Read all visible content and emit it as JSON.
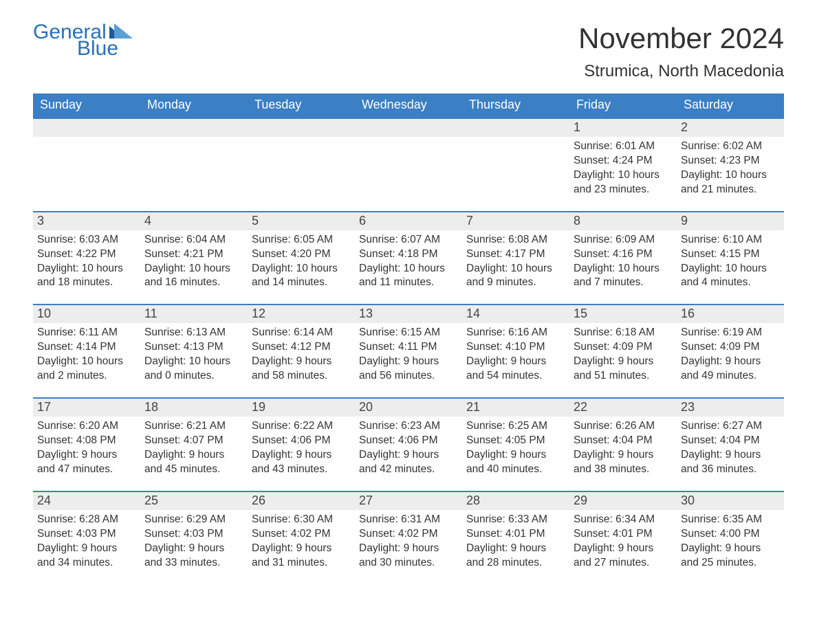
{
  "logo": {
    "text_general": "General",
    "text_blue": "Blue",
    "color": "#2a6fb5",
    "triangle_color_light": "#5a9fd4",
    "triangle_color_dark": "#1d5a9a"
  },
  "header": {
    "month_title": "November 2024",
    "location": "Strumica, North Macedonia",
    "title_fontsize": 42,
    "location_fontsize": 24,
    "title_color": "#323232"
  },
  "calendar": {
    "header_bg": "#3b7fc4",
    "header_text_color": "#ffffff",
    "daynum_bg": "#ededed",
    "daynum_border_color": "#3b7fc4",
    "text_color": "#333333",
    "weekdays": [
      "Sunday",
      "Monday",
      "Tuesday",
      "Wednesday",
      "Thursday",
      "Friday",
      "Saturday"
    ],
    "weeks": [
      [
        null,
        null,
        null,
        null,
        null,
        {
          "day": "1",
          "sunrise": "Sunrise: 6:01 AM",
          "sunset": "Sunset: 4:24 PM",
          "daylight1": "Daylight: 10 hours",
          "daylight2": "and 23 minutes."
        },
        {
          "day": "2",
          "sunrise": "Sunrise: 6:02 AM",
          "sunset": "Sunset: 4:23 PM",
          "daylight1": "Daylight: 10 hours",
          "daylight2": "and 21 minutes."
        }
      ],
      [
        {
          "day": "3",
          "sunrise": "Sunrise: 6:03 AM",
          "sunset": "Sunset: 4:22 PM",
          "daylight1": "Daylight: 10 hours",
          "daylight2": "and 18 minutes."
        },
        {
          "day": "4",
          "sunrise": "Sunrise: 6:04 AM",
          "sunset": "Sunset: 4:21 PM",
          "daylight1": "Daylight: 10 hours",
          "daylight2": "and 16 minutes."
        },
        {
          "day": "5",
          "sunrise": "Sunrise: 6:05 AM",
          "sunset": "Sunset: 4:20 PM",
          "daylight1": "Daylight: 10 hours",
          "daylight2": "and 14 minutes."
        },
        {
          "day": "6",
          "sunrise": "Sunrise: 6:07 AM",
          "sunset": "Sunset: 4:18 PM",
          "daylight1": "Daylight: 10 hours",
          "daylight2": "and 11 minutes."
        },
        {
          "day": "7",
          "sunrise": "Sunrise: 6:08 AM",
          "sunset": "Sunset: 4:17 PM",
          "daylight1": "Daylight: 10 hours",
          "daylight2": "and 9 minutes."
        },
        {
          "day": "8",
          "sunrise": "Sunrise: 6:09 AM",
          "sunset": "Sunset: 4:16 PM",
          "daylight1": "Daylight: 10 hours",
          "daylight2": "and 7 minutes."
        },
        {
          "day": "9",
          "sunrise": "Sunrise: 6:10 AM",
          "sunset": "Sunset: 4:15 PM",
          "daylight1": "Daylight: 10 hours",
          "daylight2": "and 4 minutes."
        }
      ],
      [
        {
          "day": "10",
          "sunrise": "Sunrise: 6:11 AM",
          "sunset": "Sunset: 4:14 PM",
          "daylight1": "Daylight: 10 hours",
          "daylight2": "and 2 minutes."
        },
        {
          "day": "11",
          "sunrise": "Sunrise: 6:13 AM",
          "sunset": "Sunset: 4:13 PM",
          "daylight1": "Daylight: 10 hours",
          "daylight2": "and 0 minutes."
        },
        {
          "day": "12",
          "sunrise": "Sunrise: 6:14 AM",
          "sunset": "Sunset: 4:12 PM",
          "daylight1": "Daylight: 9 hours",
          "daylight2": "and 58 minutes."
        },
        {
          "day": "13",
          "sunrise": "Sunrise: 6:15 AM",
          "sunset": "Sunset: 4:11 PM",
          "daylight1": "Daylight: 9 hours",
          "daylight2": "and 56 minutes."
        },
        {
          "day": "14",
          "sunrise": "Sunrise: 6:16 AM",
          "sunset": "Sunset: 4:10 PM",
          "daylight1": "Daylight: 9 hours",
          "daylight2": "and 54 minutes."
        },
        {
          "day": "15",
          "sunrise": "Sunrise: 6:18 AM",
          "sunset": "Sunset: 4:09 PM",
          "daylight1": "Daylight: 9 hours",
          "daylight2": "and 51 minutes."
        },
        {
          "day": "16",
          "sunrise": "Sunrise: 6:19 AM",
          "sunset": "Sunset: 4:09 PM",
          "daylight1": "Daylight: 9 hours",
          "daylight2": "and 49 minutes."
        }
      ],
      [
        {
          "day": "17",
          "sunrise": "Sunrise: 6:20 AM",
          "sunset": "Sunset: 4:08 PM",
          "daylight1": "Daylight: 9 hours",
          "daylight2": "and 47 minutes."
        },
        {
          "day": "18",
          "sunrise": "Sunrise: 6:21 AM",
          "sunset": "Sunset: 4:07 PM",
          "daylight1": "Daylight: 9 hours",
          "daylight2": "and 45 minutes."
        },
        {
          "day": "19",
          "sunrise": "Sunrise: 6:22 AM",
          "sunset": "Sunset: 4:06 PM",
          "daylight1": "Daylight: 9 hours",
          "daylight2": "and 43 minutes."
        },
        {
          "day": "20",
          "sunrise": "Sunrise: 6:23 AM",
          "sunset": "Sunset: 4:06 PM",
          "daylight1": "Daylight: 9 hours",
          "daylight2": "and 42 minutes."
        },
        {
          "day": "21",
          "sunrise": "Sunrise: 6:25 AM",
          "sunset": "Sunset: 4:05 PM",
          "daylight1": "Daylight: 9 hours",
          "daylight2": "and 40 minutes."
        },
        {
          "day": "22",
          "sunrise": "Sunrise: 6:26 AM",
          "sunset": "Sunset: 4:04 PM",
          "daylight1": "Daylight: 9 hours",
          "daylight2": "and 38 minutes."
        },
        {
          "day": "23",
          "sunrise": "Sunrise: 6:27 AM",
          "sunset": "Sunset: 4:04 PM",
          "daylight1": "Daylight: 9 hours",
          "daylight2": "and 36 minutes."
        }
      ],
      [
        {
          "day": "24",
          "sunrise": "Sunrise: 6:28 AM",
          "sunset": "Sunset: 4:03 PM",
          "daylight1": "Daylight: 9 hours",
          "daylight2": "and 34 minutes."
        },
        {
          "day": "25",
          "sunrise": "Sunrise: 6:29 AM",
          "sunset": "Sunset: 4:03 PM",
          "daylight1": "Daylight: 9 hours",
          "daylight2": "and 33 minutes."
        },
        {
          "day": "26",
          "sunrise": "Sunrise: 6:30 AM",
          "sunset": "Sunset: 4:02 PM",
          "daylight1": "Daylight: 9 hours",
          "daylight2": "and 31 minutes."
        },
        {
          "day": "27",
          "sunrise": "Sunrise: 6:31 AM",
          "sunset": "Sunset: 4:02 PM",
          "daylight1": "Daylight: 9 hours",
          "daylight2": "and 30 minutes."
        },
        {
          "day": "28",
          "sunrise": "Sunrise: 6:33 AM",
          "sunset": "Sunset: 4:01 PM",
          "daylight1": "Daylight: 9 hours",
          "daylight2": "and 28 minutes."
        },
        {
          "day": "29",
          "sunrise": "Sunrise: 6:34 AM",
          "sunset": "Sunset: 4:01 PM",
          "daylight1": "Daylight: 9 hours",
          "daylight2": "and 27 minutes."
        },
        {
          "day": "30",
          "sunrise": "Sunrise: 6:35 AM",
          "sunset": "Sunset: 4:00 PM",
          "daylight1": "Daylight: 9 hours",
          "daylight2": "and 25 minutes."
        }
      ]
    ]
  }
}
